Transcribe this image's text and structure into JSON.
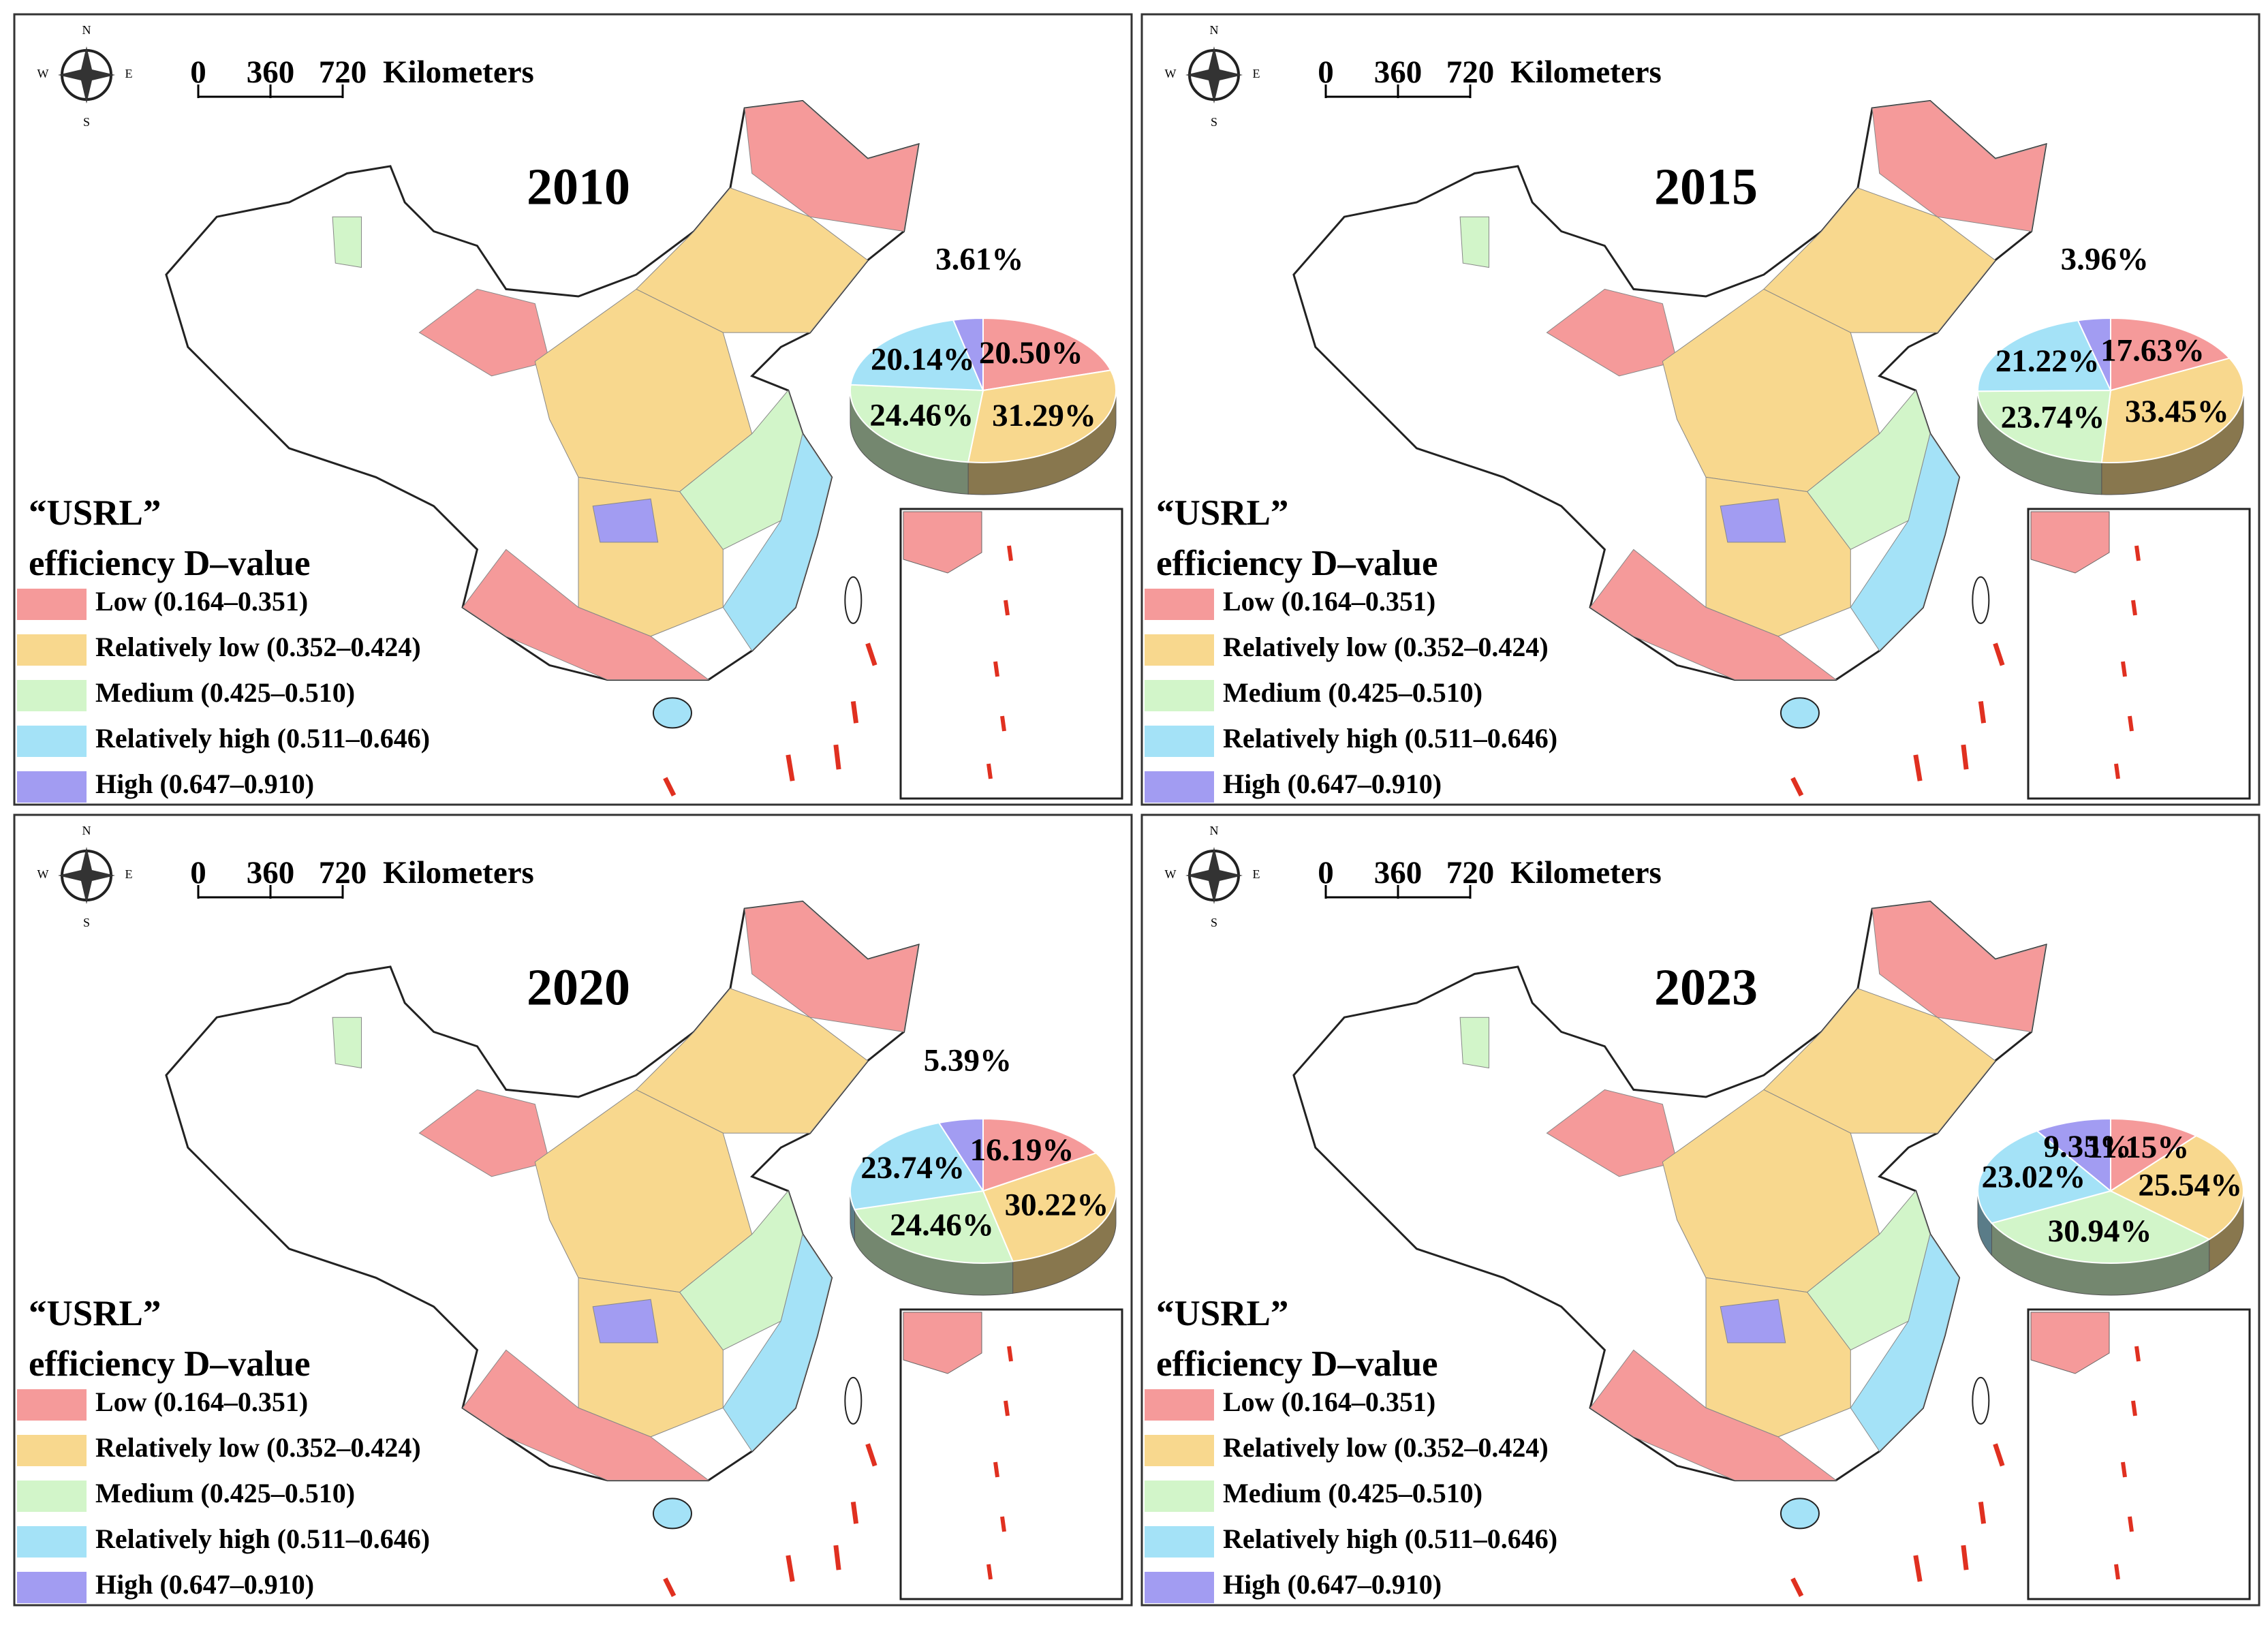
{
  "map": {
    "compass": [
      "N",
      "S",
      "W",
      "E"
    ],
    "scale_labels": [
      0,
      360,
      720
    ],
    "scale_unit": "Kilometers",
    "legend_title": [
      "“USRL”",
      "efficiency D–value"
    ]
  },
  "chart_data": [
    {
      "type": "pie",
      "title": "2010",
      "categories": [
        "Low (0.164–0.351)",
        "Relatively low (0.352–0.424)",
        "Medium (0.425–0.510)",
        "Relatively high (0.511–0.646)",
        "High (0.647–0.910)"
      ],
      "colors": [
        "#f59a9a",
        "#f8d88e",
        "#d2f5c9",
        "#a4e2f7",
        "#a29cf2"
      ],
      "values": [
        20.5,
        31.29,
        24.46,
        20.14,
        3.61
      ],
      "value_labels": [
        "20.50%",
        "31.29%",
        "24.46%",
        "20.14%",
        "3.61%"
      ]
    },
    {
      "type": "pie",
      "title": "2015",
      "categories": [
        "Low (0.164–0.351)",
        "Relatively low (0.352–0.424)",
        "Medium (0.425–0.510)",
        "Relatively high (0.511–0.646)",
        "High (0.647–0.910)"
      ],
      "colors": [
        "#f59a9a",
        "#f8d88e",
        "#d2f5c9",
        "#a4e2f7",
        "#a29cf2"
      ],
      "values": [
        17.63,
        33.45,
        23.74,
        21.22,
        3.96
      ],
      "value_labels": [
        "17.63%",
        "33.45%",
        "23.74%",
        "21.22%",
        "3.96%"
      ]
    },
    {
      "type": "pie",
      "title": "2020",
      "categories": [
        "Low (0.164–0.351)",
        "Relatively low (0.352–0.424)",
        "Medium (0.425–0.510)",
        "Relatively high (0.511–0.646)",
        "High (0.647–0.910)"
      ],
      "colors": [
        "#f59a9a",
        "#f8d88e",
        "#d2f5c9",
        "#a4e2f7",
        "#a29cf2"
      ],
      "values": [
        16.19,
        30.22,
        24.46,
        23.74,
        5.39
      ],
      "value_labels": [
        "16.19%",
        "30.22%",
        "24.46%",
        "23.74%",
        "5.39%"
      ]
    },
    {
      "type": "pie",
      "title": "2023",
      "categories": [
        "Low (0.164–0.351)",
        "Relatively low (0.352–0.424)",
        "Medium (0.425–0.510)",
        "Relatively high (0.511–0.646)",
        "High (0.647–0.910)"
      ],
      "colors": [
        "#f59a9a",
        "#f8d88e",
        "#d2f5c9",
        "#a4e2f7",
        "#a29cf2"
      ],
      "values": [
        11.15,
        25.54,
        30.94,
        23.02,
        9.35
      ],
      "value_labels": [
        "11.15%",
        "25.54%",
        "30.94%",
        "23.02%",
        "9.35%"
      ]
    }
  ]
}
